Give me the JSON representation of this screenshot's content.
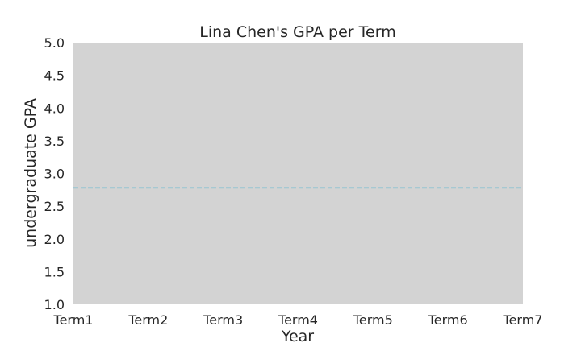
{
  "chart_data": {
    "type": "line",
    "title": "Lina Chen's GPA per Term",
    "xlabel": "Year",
    "ylabel": "undergraduate GPA",
    "categories": [
      "Term1",
      "Term2",
      "Term3",
      "Term4",
      "Term5",
      "Term6",
      "Term7"
    ],
    "ylim": [
      1.0,
      5.0
    ],
    "yticks": [
      "1.0",
      "1.5",
      "2.0",
      "2.5",
      "3.0",
      "3.5",
      "4.0",
      "4.5",
      "5.0"
    ],
    "grid": false,
    "plot_background": "#d3d3d3",
    "reference_lines": [
      {
        "y": 2.78,
        "style": "dashed",
        "color": "#5bb6cf"
      }
    ],
    "series": []
  }
}
